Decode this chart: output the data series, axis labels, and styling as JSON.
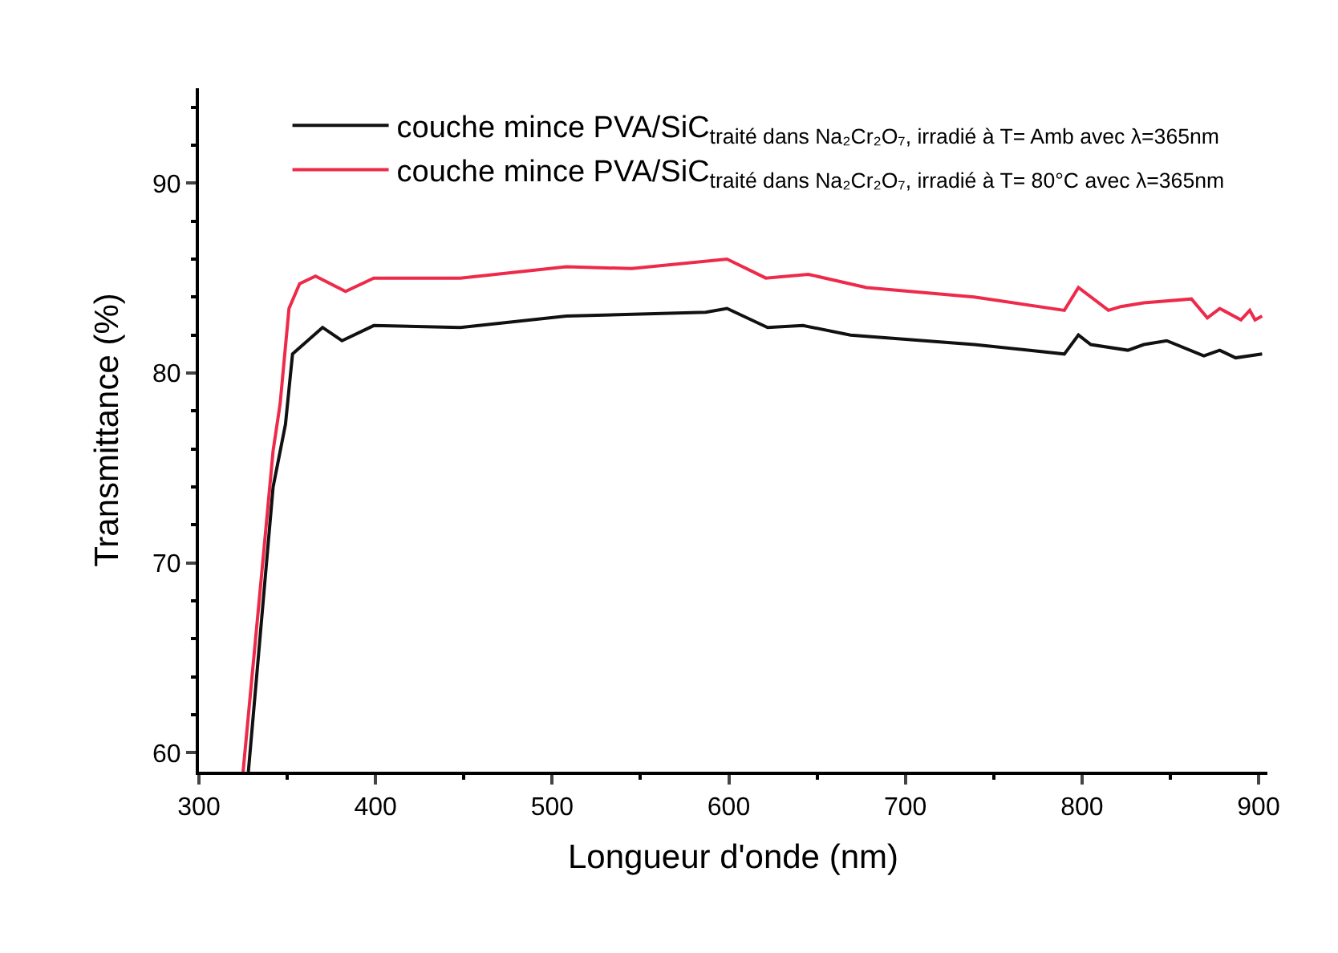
{
  "chart_data": {
    "type": "line",
    "xlabel": "Longueur d'onde (nm)",
    "ylabel": "Transmittance (%)",
    "xlim": [
      300,
      905
    ],
    "xticks": [
      300,
      400,
      500,
      600,
      700,
      800,
      900
    ],
    "ylim": [
      59,
      95
    ],
    "yticks": [
      60,
      70,
      80,
      90
    ],
    "legend": "top",
    "marker": "none",
    "line_style": "solid",
    "series": [
      {
        "name": "couche mince PVA/SiC$_{traité dans Na₂Cr₂O₇, irradié à T= Amb avec λ=365nm}$",
        "color": "#111111",
        "x": [
          328,
          342,
          349,
          353,
          370,
          381,
          399,
          448,
          508,
          587,
          599,
          622,
          642,
          669,
          739,
          790,
          798,
          805,
          826,
          835,
          848,
          869,
          878,
          887,
          902
        ],
        "values": [
          59,
          74,
          77.3,
          81,
          82.4,
          81.7,
          82.5,
          82.4,
          83.0,
          83.2,
          83.4,
          82.4,
          82.5,
          82.0,
          81.5,
          81.0,
          82.0,
          81.5,
          81.2,
          81.5,
          81.7,
          80.9,
          81.2,
          80.8,
          81.0
        ]
      },
      {
        "name": "couche mince PVA/SiC$_{traité dans Na₂Cr₂O₇, irradié à T= 80°C avec λ=365nm}$",
        "color": "#ee2a4a",
        "x": [
          325,
          335,
          342,
          346,
          351,
          357,
          366,
          383,
          399,
          448,
          508,
          545,
          599,
          621,
          645,
          678,
          739,
          790,
          798,
          815,
          822,
          835,
          862,
          871,
          878,
          890,
          895,
          898,
          902
        ],
        "values": [
          59,
          68.9,
          75.9,
          78.4,
          83.4,
          84.7,
          85.1,
          84.3,
          85.0,
          85.0,
          85.6,
          85.5,
          86.0,
          85.0,
          85.2,
          84.5,
          84.0,
          83.3,
          84.5,
          83.3,
          83.5,
          83.7,
          83.9,
          82.9,
          83.4,
          82.8,
          83.3,
          82.8,
          83.0
        ]
      }
    ]
  }
}
